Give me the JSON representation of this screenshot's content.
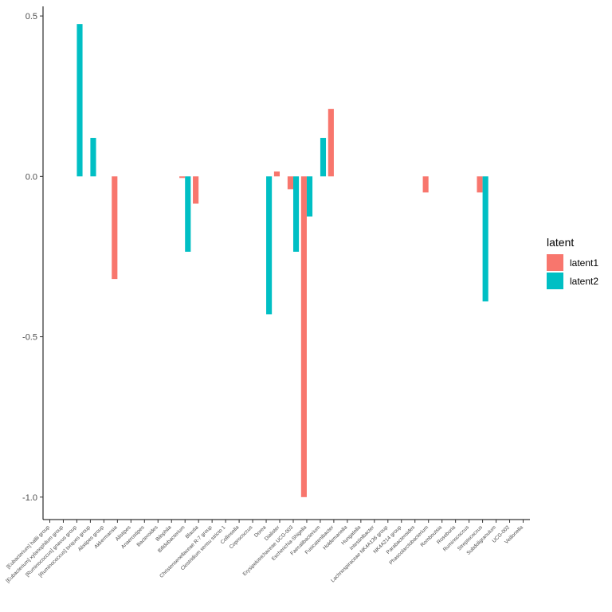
{
  "chart_data": {
    "type": "bar",
    "categories": [
      "[Eubacterium] hallii group",
      "[Eubacterium] xylanophilum group",
      "[Ruminococcus] gnavus group",
      "[Ruminococcus] torques group",
      "Alistipes group",
      "Akkermansia",
      "Alistipes",
      "Anaerostipes",
      "Bacteroides",
      "Bilophila",
      "Bifidobacterium",
      "Blautia",
      "Christensenellaceae R-7 group",
      "Clostridium sensu stricto 1",
      "Collinsella",
      "Coprococcus",
      "Dorea",
      "Dialister",
      "Erysipelotrichaceae UCG-003",
      "Escherichia-Shigella",
      "Faecalibacterium",
      "Fusicatenibacter",
      "Holdemanella",
      "Hungatella",
      "Intestinibacter",
      "Lachnospiraceae NK4A136 group",
      "NK4A214 group",
      "Parabacteroides",
      "Phascolarctobacterium",
      "Romboutsia",
      "Roseburia",
      "Ruminococcus",
      "Streptococcus",
      "Subdoligranulum",
      "UCG-002",
      "Veillonella"
    ],
    "series": [
      {
        "name": "latent1",
        "color": "#F8766D",
        "values": [
          0,
          0,
          0,
          0,
          0,
          -0.32,
          0,
          0,
          0,
          0,
          -0.005,
          -0.085,
          0,
          0,
          0,
          0,
          0,
          0.015,
          -0.04,
          -1.0,
          0,
          0.21,
          0,
          0,
          0,
          0,
          0,
          0,
          -0.05,
          0,
          0,
          0,
          -0.05,
          0,
          0,
          0
        ]
      },
      {
        "name": "latent2",
        "color": "#00BFC4",
        "values": [
          0,
          0,
          0.475,
          0.12,
          0,
          0,
          0,
          0,
          0,
          0,
          -0.235,
          0,
          0,
          0,
          0,
          0,
          -0.43,
          0,
          -0.235,
          -0.125,
          0.12,
          0,
          0,
          0,
          0,
          0,
          0,
          0,
          0,
          0,
          0,
          0,
          -0.39,
          0,
          0,
          0
        ]
      }
    ],
    "yticks": [
      0.5,
      0.0,
      -0.5,
      -1.0
    ],
    "ytick_labels": [
      "0.5",
      "0.0",
      "-0.5",
      "-1.0"
    ],
    "ylim": [
      -1.07,
      0.53
    ],
    "grid": false,
    "legend_title": "latent",
    "legend_position": "right",
    "xlabel": "",
    "ylabel": "",
    "title": ""
  }
}
